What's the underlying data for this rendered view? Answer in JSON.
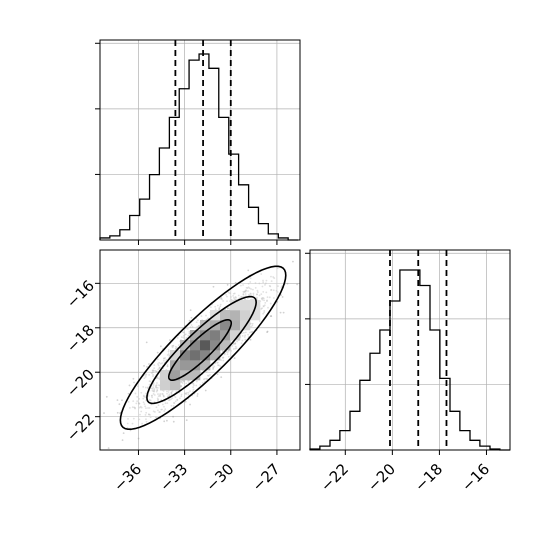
{
  "chart_data": {
    "type": "corner",
    "title": "",
    "panels": [
      {
        "name": "x-marginal",
        "type": "histogram",
        "xlim": [
          -38.5,
          -25.5
        ],
        "x_ticks": [
          -36,
          -33,
          -30,
          -27
        ],
        "y_gridlines": 3,
        "tick_labels_shown": false,
        "quantile_lines": [
          -33.6,
          -31.8,
          -30.0
        ],
        "bin_edges": [
          -38.5,
          -37.86,
          -37.21,
          -36.57,
          -35.92,
          -35.28,
          -34.64,
          -33.99,
          -33.35,
          -32.71,
          -32.06,
          -31.42,
          -30.78,
          -30.13,
          -29.49,
          -28.84,
          -28.2,
          -27.56,
          -26.91,
          -26.27,
          -25.63
        ],
        "counts": [
          0.01,
          0.02,
          0.05,
          0.12,
          0.2,
          0.32,
          0.45,
          0.6,
          0.74,
          0.88,
          0.91,
          0.84,
          0.6,
          0.42,
          0.27,
          0.16,
          0.08,
          0.03,
          0.01,
          0.0
        ]
      },
      {
        "name": "joint",
        "type": "2d-histogram-contour",
        "xlim": [
          -38.5,
          -25.5
        ],
        "ylim": [
          -23.5,
          -14.5
        ],
        "x_ticks": [
          -36,
          -33,
          -30,
          -27
        ],
        "y_ticks": [
          -16,
          -18,
          -20,
          -22
        ],
        "x_tick_labels": [
          "−36",
          "−33",
          "−30",
          "−27"
        ],
        "y_tick_labels": [
          "−16",
          "−18",
          "−20",
          "−22"
        ],
        "mean": [
          -31.8,
          -18.9
        ],
        "correlation": 0.85,
        "contours": [
          {
            "level": "outer",
            "center": [
              -31.8,
              -18.9
            ],
            "half_major": [
              5.3,
              3.5
            ],
            "half_minor": [
              0.9,
              -1.1
            ]
          },
          {
            "level": "middle",
            "center": [
              -31.9,
              -19.0
            ],
            "half_major": [
              3.5,
              2.3
            ],
            "half_minor": [
              0.6,
              -0.7
            ]
          },
          {
            "level": "inner",
            "center": [
              -32.0,
              -19.0
            ],
            "half_major": [
              2.0,
              1.3
            ],
            "half_minor": [
              0.35,
              -0.4
            ]
          }
        ]
      },
      {
        "name": "y-marginal",
        "type": "histogram",
        "xlim": [
          -23.5,
          -15.0
        ],
        "x_ticks": [
          -22,
          -20,
          -18,
          -16
        ],
        "x_tick_labels": [
          "−22",
          "−20",
          "−18",
          "−16"
        ],
        "y_gridlines": 3,
        "quantile_lines": [
          -20.1,
          -18.9,
          -17.7
        ],
        "bin_edges": [
          -23.5,
          -23.08,
          -22.65,
          -22.23,
          -21.8,
          -21.38,
          -20.95,
          -20.53,
          -20.1,
          -19.68,
          -19.25,
          -18.83,
          -18.4,
          -17.98,
          -17.55,
          -17.13,
          -16.7,
          -16.28,
          -15.85,
          -15.43,
          -15.0
        ],
        "counts": [
          0.005,
          0.02,
          0.05,
          0.1,
          0.2,
          0.36,
          0.5,
          0.62,
          0.77,
          0.93,
          0.93,
          0.85,
          0.62,
          0.37,
          0.2,
          0.1,
          0.05,
          0.02,
          0.005,
          0.0
        ]
      }
    ],
    "colors": {
      "line": "#000000",
      "grid": "#b0b0b0",
      "scatter": "#9a9a9a"
    }
  }
}
